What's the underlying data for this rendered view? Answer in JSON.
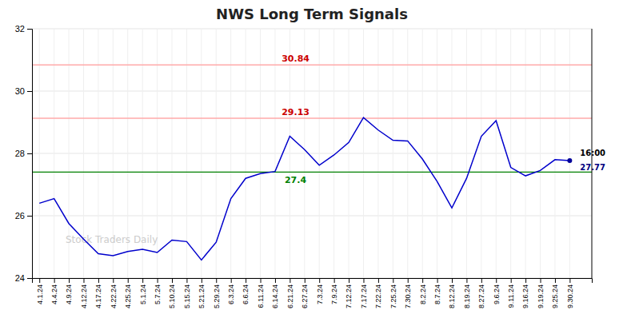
{
  "chart_data": {
    "type": "line",
    "title": "NWS Long Term Signals",
    "categories": [
      "4.1.24",
      "4.4.24",
      "4.9.24",
      "4.12.24",
      "4.17.24",
      "4.22.24",
      "4.25.24",
      "5.1.24",
      "5.7.24",
      "5.10.24",
      "5.15.24",
      "5.21.24",
      "5.29.24",
      "6.3.24",
      "6.6.24",
      "6.11.24",
      "6.14.24",
      "6.21.24",
      "6.27.24",
      "7.3.24",
      "7.9.24",
      "7.12.24",
      "7.17.24",
      "7.22.24",
      "7.25.24",
      "7.30.24",
      "8.2.24",
      "8.7.24",
      "8.12.24",
      "8.19.24",
      "8.27.24",
      "9.6.24",
      "9.11.24",
      "9.16.24",
      "9.19.24",
      "9.25.24",
      "9.30.24"
    ],
    "values": [
      26.4,
      26.55,
      25.75,
      25.25,
      24.78,
      24.72,
      24.85,
      24.92,
      24.82,
      25.22,
      25.17,
      24.58,
      25.15,
      26.55,
      27.2,
      27.35,
      27.42,
      28.55,
      28.12,
      27.62,
      27.95,
      28.35,
      29.15,
      28.75,
      28.42,
      28.4,
      27.82,
      27.1,
      26.25,
      27.2,
      28.55,
      29.05,
      27.55,
      27.28,
      27.45,
      27.8,
      27.77
    ],
    "color": "#0000cc",
    "ylim": [
      24,
      32
    ],
    "yticks": [
      24,
      26,
      28,
      30,
      32
    ],
    "grid": true,
    "hlines": [
      {
        "value": 27.4,
        "label": "27.4",
        "color": "green",
        "label_color": "green",
        "label_position": "below"
      },
      {
        "value": 29.13,
        "label": "29.13",
        "color": "#ffaaaa",
        "label_color": "#cc0000",
        "label_position": "above"
      },
      {
        "value": 30.84,
        "label": "30.84",
        "color": "#ffaaaa",
        "label_color": "#cc0000",
        "label_position": "above"
      }
    ],
    "last_point": {
      "color": "#000099",
      "time_label": "16:00",
      "value_label": "27.77",
      "value_label_color": "navy"
    },
    "watermark": "Stock Traders Daily"
  }
}
